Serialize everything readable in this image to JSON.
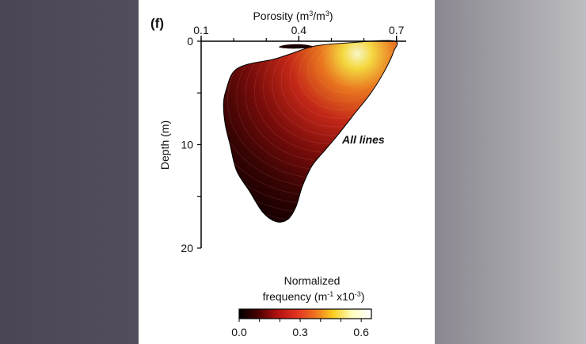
{
  "chart_data": {
    "type": "heatmap",
    "panel_label": "(f)",
    "xlabel_prefix": "Porosity (m",
    "xlabel_sup1": "3",
    "xlabel_mid": "/m",
    "xlabel_sup2": "3",
    "xlabel_suffix": ")",
    "ylabel": "Depth (m)",
    "annotation": "All lines",
    "x_ticks": [
      "0.1",
      "0.4",
      "0.7"
    ],
    "x_tick_values": [
      0.1,
      0.4,
      0.7
    ],
    "y_ticks": [
      "0",
      "10",
      "20"
    ],
    "y_tick_values": [
      0,
      10,
      20
    ],
    "xlim": [
      0.1,
      0.73
    ],
    "ylim": [
      0,
      20
    ],
    "x_axis_position": "top",
    "y_axis_inverted": true,
    "colorbar": {
      "title_line1": "Normalized",
      "title_line2_prefix": "frequency (m",
      "title_line2_sup1": "-1",
      "title_line2_mid": " x10",
      "title_line2_sup2": "-3",
      "title_line2_suffix": ")",
      "ticks": [
        "0.0",
        "0.3",
        "0.6"
      ],
      "tick_values": [
        0.0,
        0.3,
        0.6
      ],
      "range": [
        0.0,
        0.65
      ],
      "colormap": [
        "#000000",
        "#4a0000",
        "#b01010",
        "#e03020",
        "#f07020",
        "#fbd020",
        "#ffffc0",
        "#ffffff"
      ]
    },
    "density_outline": [
      [
        0.69,
        0.0
      ],
      [
        0.55,
        0.2
      ],
      [
        0.45,
        0.5
      ],
      [
        0.38,
        1.2
      ],
      [
        0.32,
        1.8
      ],
      [
        0.24,
        2.3
      ],
      [
        0.2,
        3.0
      ],
      [
        0.18,
        4.5
      ],
      [
        0.17,
        6.0
      ],
      [
        0.175,
        8.0
      ],
      [
        0.19,
        10.0
      ],
      [
        0.21,
        12.5
      ],
      [
        0.25,
        14.5
      ],
      [
        0.29,
        16.5
      ],
      [
        0.33,
        17.4
      ],
      [
        0.365,
        17.2
      ],
      [
        0.39,
        16.0
      ],
      [
        0.41,
        14.0
      ],
      [
        0.44,
        12.0
      ],
      [
        0.48,
        10.5
      ],
      [
        0.52,
        9.0
      ],
      [
        0.57,
        7.0
      ],
      [
        0.62,
        5.0
      ],
      [
        0.66,
        3.0
      ],
      [
        0.69,
        1.0
      ]
    ],
    "density_peak": {
      "x": 0.58,
      "y": 1.2,
      "value": 0.6
    }
  }
}
